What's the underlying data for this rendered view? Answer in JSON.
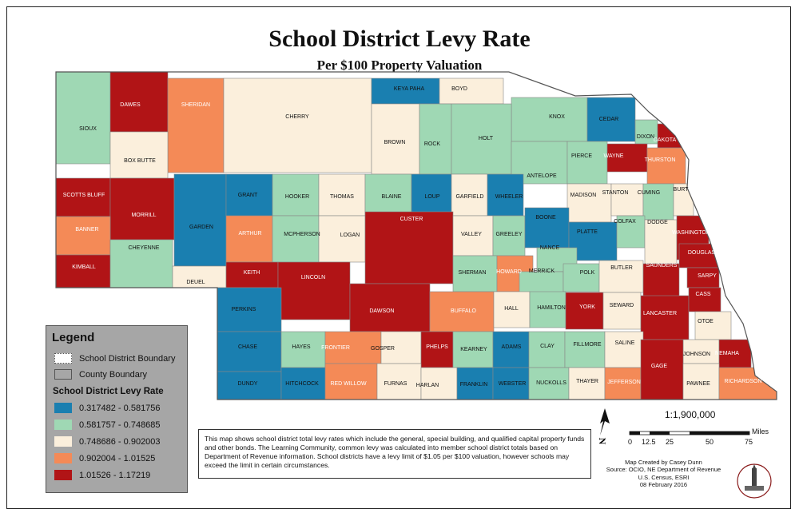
{
  "title": "School District Levy Rate",
  "subtitle": "Per $100 Property Valuation",
  "legend": {
    "title": "Legend",
    "boundary_items": [
      "School District Boundary",
      "County Boundary"
    ],
    "levy_title": "School District Levy Rate",
    "classes": [
      {
        "label": "0.317482 - 0.581756",
        "color": "#1a7fb0"
      },
      {
        "label": "0.581757 - 0.748685",
        "color": "#9fd8b4"
      },
      {
        "label": "0.748686 - 0.902003",
        "color": "#fbefdc"
      },
      {
        "label": "0.902004 - 1.01525",
        "color": "#f48a57"
      },
      {
        "label": "1.01526 - 1.17219",
        "color": "#b11416"
      }
    ]
  },
  "description": "This map shows school district total levy rates which include the general, special building, and qualified capital property funds and other bonds. The Learning Community, common levy was calculated into member school district totals based on Department of Revenue information. School districts have a levy limit of $1.05 per $100 valuation, however schools may exceed the limit in certain circumstances.",
  "scale": {
    "ratio": "1:1,900,000",
    "unit": "Miles",
    "ticks": [
      "0",
      "12.5",
      "25",
      "50",
      "75"
    ]
  },
  "north_label": "N",
  "credits": [
    "Map Created by Casey Dunn",
    "Source: OCIO, NE Department of Revenue",
    "U.S. Census, ESRI",
    "08 February 2016"
  ],
  "counties": [
    {
      "name": "SIOUX",
      "c": 2
    },
    {
      "name": "DAWES",
      "c": 5
    },
    {
      "name": "SHERIDAN",
      "c": 4
    },
    {
      "name": "CHERRY",
      "c": 3
    },
    {
      "name": "KEYA PAHA",
      "c": 1
    },
    {
      "name": "BOYD",
      "c": 3
    },
    {
      "name": "KNOX",
      "c": 2
    },
    {
      "name": "CEDAR",
      "c": 1
    },
    {
      "name": "DIXON",
      "c": 2
    },
    {
      "name": "DAKOTA",
      "c": 5
    },
    {
      "name": "BOX BUTTE",
      "c": 3
    },
    {
      "name": "BROWN",
      "c": 3
    },
    {
      "name": "ROCK",
      "c": 2
    },
    {
      "name": "HOLT",
      "c": 2
    },
    {
      "name": "ANTELOPE",
      "c": 2
    },
    {
      "name": "PIERCE",
      "c": 2
    },
    {
      "name": "WAYNE",
      "c": 5
    },
    {
      "name": "THURSTON",
      "c": 4
    },
    {
      "name": "SCOTTS BLUFF",
      "c": 5
    },
    {
      "name": "MORRILL",
      "c": 5
    },
    {
      "name": "GARDEN",
      "c": 1
    },
    {
      "name": "GRANT",
      "c": 1
    },
    {
      "name": "HOOKER",
      "c": 2
    },
    {
      "name": "THOMAS",
      "c": 3
    },
    {
      "name": "BLAINE",
      "c": 2
    },
    {
      "name": "LOUP",
      "c": 1
    },
    {
      "name": "GARFIELD",
      "c": 3
    },
    {
      "name": "WHEELER",
      "c": 1
    },
    {
      "name": "MADISON",
      "c": 3
    },
    {
      "name": "STANTON",
      "c": 3
    },
    {
      "name": "CUMING",
      "c": 2
    },
    {
      "name": "BURT",
      "c": 3
    },
    {
      "name": "BANNER",
      "c": 4
    },
    {
      "name": "ARTHUR",
      "c": 4
    },
    {
      "name": "MCPHERSON",
      "c": 2
    },
    {
      "name": "LOGAN",
      "c": 3
    },
    {
      "name": "CUSTER",
      "c": 5
    },
    {
      "name": "VALLEY",
      "c": 3
    },
    {
      "name": "GREELEY",
      "c": 2
    },
    {
      "name": "BOONE",
      "c": 1
    },
    {
      "name": "PLATTE",
      "c": 1
    },
    {
      "name": "COLFAX",
      "c": 2
    },
    {
      "name": "DODGE",
      "c": 3
    },
    {
      "name": "WASHINGTON",
      "c": 5
    },
    {
      "name": "KIMBALL",
      "c": 5
    },
    {
      "name": "CHEYENNE",
      "c": 2
    },
    {
      "name": "DEUEL",
      "c": 3
    },
    {
      "name": "KEITH",
      "c": 5
    },
    {
      "name": "LINCOLN",
      "c": 5
    },
    {
      "name": "SHERMAN",
      "c": 2
    },
    {
      "name": "HOWARD",
      "c": 4
    },
    {
      "name": "NANCE",
      "c": 2
    },
    {
      "name": "MERRICK",
      "c": 2
    },
    {
      "name": "POLK",
      "c": 2
    },
    {
      "name": "BUTLER",
      "c": 3
    },
    {
      "name": "SAUNDERS",
      "c": 5
    },
    {
      "name": "DOUGLAS",
      "c": 5
    },
    {
      "name": "SARPY",
      "c": 5
    },
    {
      "name": "PERKINS",
      "c": 1
    },
    {
      "name": "DAWSON",
      "c": 5
    },
    {
      "name": "BUFFALO",
      "c": 4
    },
    {
      "name": "HALL",
      "c": 3
    },
    {
      "name": "HAMILTON",
      "c": 2
    },
    {
      "name": "YORK",
      "c": 5
    },
    {
      "name": "SEWARD",
      "c": 3
    },
    {
      "name": "LANCASTER",
      "c": 5
    },
    {
      "name": "CASS",
      "c": 5
    },
    {
      "name": "OTOE",
      "c": 3
    },
    {
      "name": "CHASE",
      "c": 1
    },
    {
      "name": "HAYES",
      "c": 2
    },
    {
      "name": "FRONTIER",
      "c": 4
    },
    {
      "name": "GOSPER",
      "c": 3
    },
    {
      "name": "PHELPS",
      "c": 5
    },
    {
      "name": "KEARNEY",
      "c": 2
    },
    {
      "name": "ADAMS",
      "c": 1
    },
    {
      "name": "CLAY",
      "c": 2
    },
    {
      "name": "FILLMORE",
      "c": 2
    },
    {
      "name": "SALINE",
      "c": 3
    },
    {
      "name": "JOHNSON",
      "c": 3
    },
    {
      "name": "NEMAHA",
      "c": 5
    },
    {
      "name": "DUNDY",
      "c": 1
    },
    {
      "name": "HITCHCOCK",
      "c": 1
    },
    {
      "name": "RED WILLOW",
      "c": 4
    },
    {
      "name": "FURNAS",
      "c": 3
    },
    {
      "name": "HARLAN",
      "c": 3
    },
    {
      "name": "FRANKLIN",
      "c": 1
    },
    {
      "name": "WEBSTER",
      "c": 1
    },
    {
      "name": "NUCKOLLS",
      "c": 2
    },
    {
      "name": "THAYER",
      "c": 3
    },
    {
      "name": "JEFFERSON",
      "c": 4
    },
    {
      "name": "GAGE",
      "c": 5
    },
    {
      "name": "PAWNEE",
      "c": 3
    },
    {
      "name": "RICHARDSON",
      "c": 4
    }
  ]
}
